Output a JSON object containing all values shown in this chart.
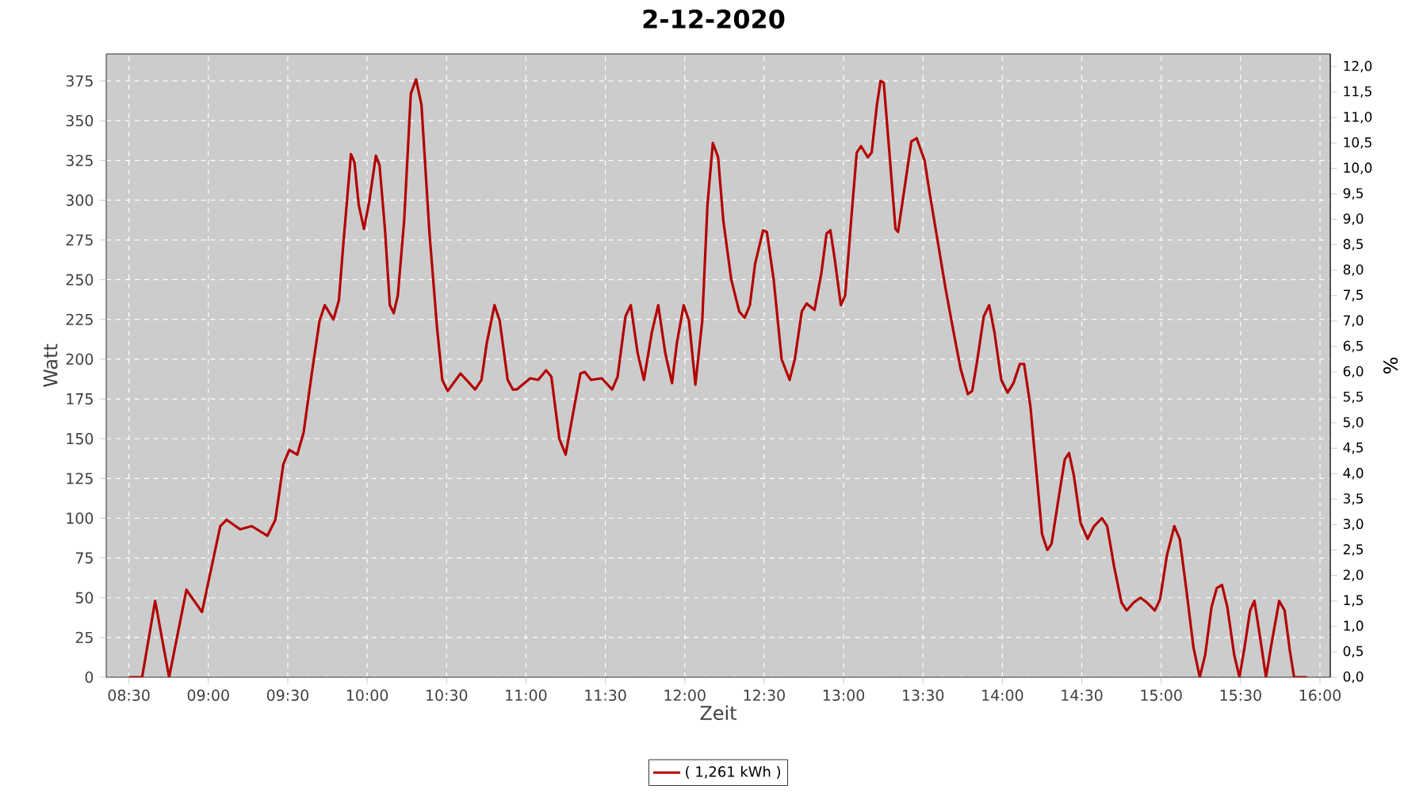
{
  "chart_data": {
    "type": "line",
    "title": "2-12-2020",
    "xlabel": "Zeit",
    "ylabel": "Watt",
    "y2label": "%",
    "xlim": [
      8.357,
      16.065
    ],
    "ylim": [
      0,
      392
    ],
    "y2lim": [
      0,
      12.25
    ],
    "xticks": [
      {
        "value": 8.5,
        "label": "08:30"
      },
      {
        "value": 9,
        "label": "09:00"
      },
      {
        "value": 9.5,
        "label": "09:30"
      },
      {
        "value": 10,
        "label": "10:00"
      },
      {
        "value": 10.5,
        "label": "10:30"
      },
      {
        "value": 11,
        "label": "11:00"
      },
      {
        "value": 11.5,
        "label": "11:30"
      },
      {
        "value": 12,
        "label": "12:00"
      },
      {
        "value": 12.5,
        "label": "12:30"
      },
      {
        "value": 13,
        "label": "13:00"
      },
      {
        "value": 13.5,
        "label": "13:30"
      },
      {
        "value": 14,
        "label": "14:00"
      },
      {
        "value": 14.5,
        "label": "14:30"
      },
      {
        "value": 15,
        "label": "15:00"
      },
      {
        "value": 15.5,
        "label": "15:30"
      },
      {
        "value": 16,
        "label": "16:00"
      }
    ],
    "yticks": [
      0,
      25,
      50,
      75,
      100,
      125,
      150,
      175,
      200,
      225,
      250,
      275,
      300,
      325,
      350,
      375
    ],
    "y2ticks": [
      {
        "value": 0,
        "label": "0,0"
      },
      {
        "value": 0.5,
        "label": "0,5"
      },
      {
        "value": 1,
        "label": "1,0"
      },
      {
        "value": 1.5,
        "label": "1,5"
      },
      {
        "value": 2,
        "label": "2,0"
      },
      {
        "value": 2.5,
        "label": "2,5"
      },
      {
        "value": 3,
        "label": "3,0"
      },
      {
        "value": 3.5,
        "label": "3,5"
      },
      {
        "value": 4,
        "label": "4,0"
      },
      {
        "value": 4.5,
        "label": "4,5"
      },
      {
        "value": 5,
        "label": "5,0"
      },
      {
        "value": 5.5,
        "label": "5,5"
      },
      {
        "value": 6,
        "label": "6,0"
      },
      {
        "value": 6.5,
        "label": "6,5"
      },
      {
        "value": 7,
        "label": "7,0"
      },
      {
        "value": 7.5,
        "label": "7,5"
      },
      {
        "value": 8,
        "label": "8,0"
      },
      {
        "value": 8.5,
        "label": "8,5"
      },
      {
        "value": 9,
        "label": "9,0"
      },
      {
        "value": 9.5,
        "label": "9,5"
      },
      {
        "value": 10,
        "label": "10,0"
      },
      {
        "value": 10.5,
        "label": "10,5"
      },
      {
        "value": 11,
        "label": "11,0"
      },
      {
        "value": 11.5,
        "label": "11,5"
      },
      {
        "value": 12,
        "label": "12,0"
      }
    ],
    "grid": true,
    "legend": "bottom",
    "marker": "none",
    "line_style": "solid",
    "series": [
      {
        "name": "( 1,261 kWh )",
        "color": "#b30000",
        "x": [
          8.5,
          8.583,
          8.665,
          8.753,
          8.862,
          8.96,
          9.075,
          9.115,
          9.2,
          9.273,
          9.372,
          9.422,
          9.472,
          9.51,
          9.56,
          9.6,
          9.65,
          9.7,
          9.733,
          9.788,
          9.822,
          9.848,
          9.898,
          9.92,
          9.947,
          9.98,
          10.013,
          10.055,
          10.078,
          10.112,
          10.143,
          10.167,
          10.193,
          10.233,
          10.275,
          10.308,
          10.342,
          10.392,
          10.44,
          10.473,
          10.507,
          10.588,
          10.68,
          10.72,
          10.753,
          10.802,
          10.835,
          10.885,
          10.917,
          10.943,
          11.027,
          11.077,
          11.127,
          11.16,
          11.21,
          11.25,
          11.293,
          11.343,
          11.37,
          11.41,
          11.477,
          11.543,
          11.577,
          11.627,
          11.66,
          11.703,
          11.743,
          11.793,
          11.833,
          11.877,
          11.92,
          11.95,
          11.993,
          12.027,
          12.067,
          12.11,
          12.143,
          12.177,
          12.21,
          12.243,
          12.293,
          12.343,
          12.377,
          12.41,
          12.443,
          12.493,
          12.517,
          12.56,
          12.61,
          12.66,
          12.693,
          12.737,
          12.767,
          12.817,
          12.86,
          12.893,
          12.917,
          12.943,
          12.983,
          13.01,
          13.05,
          13.083,
          13.11,
          13.153,
          13.177,
          13.21,
          13.233,
          13.253,
          13.283,
          13.327,
          13.343,
          13.383,
          13.427,
          13.46,
          13.51,
          13.543,
          13.593,
          13.643,
          13.693,
          13.737,
          13.783,
          13.81,
          13.843,
          13.883,
          13.917,
          13.95,
          13.993,
          14.033,
          14.07,
          14.11,
          14.137,
          14.177,
          14.21,
          14.25,
          14.283,
          14.31,
          14.35,
          14.393,
          14.42,
          14.45,
          14.493,
          14.537,
          14.577,
          14.627,
          14.66,
          14.703,
          14.75,
          14.783,
          14.827,
          14.87,
          14.91,
          14.96,
          14.993,
          15.037,
          15.083,
          15.117,
          15.16,
          15.203,
          15.243,
          15.277,
          15.317,
          15.35,
          15.383,
          15.417,
          15.46,
          15.493,
          15.527,
          15.56,
          15.587,
          15.62,
          15.66,
          15.693,
          15.743,
          15.777,
          15.81,
          15.837,
          15.917
        ],
        "values": [
          0,
          0,
          48,
          0,
          55,
          41,
          95,
          99,
          93,
          95,
          89,
          99,
          134,
          143,
          140,
          154,
          190,
          224,
          234,
          225,
          237,
          270,
          329,
          324,
          297,
          282,
          299,
          328,
          322,
          282,
          234,
          229,
          240,
          287,
          367,
          376,
          360,
          280,
          220,
          187,
          180,
          191,
          181,
          187,
          210,
          234,
          224,
          187,
          181,
          181,
          188,
          187,
          193,
          189,
          150,
          140,
          164,
          191,
          192,
          187,
          188,
          181,
          189,
          227,
          234,
          204,
          187,
          217,
          234,
          204,
          185,
          210,
          234,
          224,
          184,
          224,
          297,
          336,
          327,
          287,
          250,
          230,
          226,
          234,
          260,
          281,
          280,
          250,
          200,
          187,
          200,
          230,
          235,
          231,
          254,
          279,
          281,
          264,
          234,
          240,
          290,
          330,
          334,
          327,
          330,
          360,
          375,
          374,
          337,
          282,
          280,
          307,
          337,
          339,
          325,
          304,
          274,
          244,
          217,
          194,
          178,
          180,
          200,
          227,
          234,
          217,
          187,
          179,
          185,
          197,
          197,
          170,
          134,
          90,
          80,
          84,
          110,
          137,
          141,
          127,
          97,
          87,
          95,
          100,
          95,
          70,
          47,
          42,
          47,
          50,
          47,
          42,
          49,
          77,
          95,
          87,
          54,
          19,
          0,
          14,
          44,
          56,
          58,
          44,
          14,
          0,
          20,
          42,
          48,
          27,
          0,
          20,
          48,
          42,
          17,
          0,
          0
        ]
      }
    ]
  }
}
